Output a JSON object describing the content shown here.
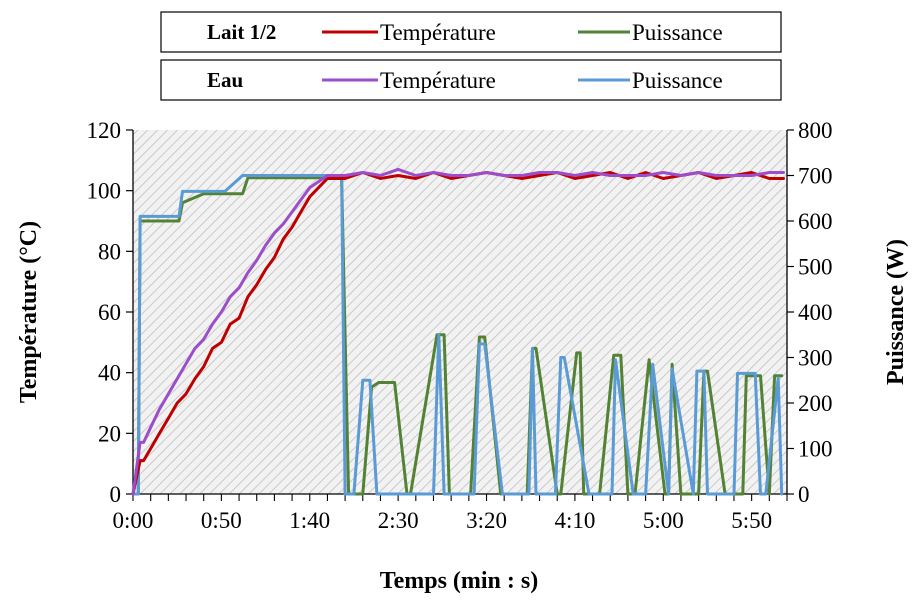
{
  "chart_data": {
    "type": "line",
    "x_label": "Temps (min : s)",
    "y_left_label": "Température (°C)",
    "y_right_label": "Puissance (W)",
    "x_range_s": [
      0,
      370
    ],
    "y_left_range": [
      0,
      120
    ],
    "y_right_range": [
      0,
      800
    ],
    "x_ticks": [
      "0:00",
      "0:50",
      "1:40",
      "2:30",
      "3:20",
      "4:10",
      "5:00",
      "5:50"
    ],
    "x_tick_values": [
      0,
      50,
      100,
      150,
      200,
      250,
      300,
      350
    ],
    "y_left_ticks": [
      0,
      20,
      40,
      60,
      80,
      100,
      120
    ],
    "y_right_ticks": [
      0,
      100,
      200,
      300,
      400,
      500,
      600,
      700,
      800
    ],
    "plot_background": "hatched light gray",
    "legend": {
      "placement": "top",
      "groups": [
        {
          "title": "Lait 1/2",
          "entries": [
            {
              "label": "Température",
              "color": "#c00000"
            },
            {
              "label": "Puissance",
              "color": "#548235"
            }
          ]
        },
        {
          "title": "Eau",
          "entries": [
            {
              "label": "Température",
              "color": "#9b4dca"
            },
            {
              "label": "Puissance",
              "color": "#5b9bd5"
            }
          ]
        }
      ]
    },
    "series": [
      {
        "name": "Lait 1/2 Température",
        "axis": "left",
        "color": "#c00000",
        "x": [
          0,
          4,
          6,
          10,
          15,
          20,
          25,
          30,
          35,
          40,
          45,
          50,
          55,
          60,
          65,
          70,
          75,
          80,
          85,
          90,
          95,
          100,
          105,
          110,
          115,
          120,
          130,
          140,
          150,
          160,
          170,
          180,
          190,
          200,
          210,
          220,
          230,
          240,
          250,
          260,
          270,
          280,
          290,
          300,
          310,
          320,
          330,
          340,
          350,
          360,
          368
        ],
        "y": [
          0,
          11,
          11,
          15,
          20,
          25,
          30,
          33,
          38,
          42,
          48,
          50,
          56,
          58,
          65,
          69,
          74,
          78,
          84,
          88,
          93,
          98,
          101,
          104,
          104,
          104,
          106,
          104,
          105,
          104,
          106,
          104,
          105,
          106,
          105,
          104,
          105,
          106,
          104,
          105,
          106,
          104,
          106,
          104,
          105,
          106,
          104,
          105,
          106,
          104,
          104
        ]
      },
      {
        "name": "Eau Température",
        "axis": "left",
        "color": "#9b4dca",
        "x": [
          0,
          4,
          6,
          10,
          15,
          20,
          25,
          30,
          35,
          40,
          45,
          50,
          55,
          60,
          65,
          70,
          75,
          80,
          85,
          90,
          95,
          100,
          105,
          110,
          115,
          120,
          130,
          140,
          150,
          160,
          170,
          180,
          190,
          200,
          210,
          220,
          230,
          240,
          250,
          260,
          270,
          280,
          290,
          300,
          310,
          320,
          330,
          340,
          350,
          360,
          368
        ],
        "y": [
          0,
          17,
          17,
          22,
          28,
          33,
          38,
          43,
          48,
          51,
          56,
          60,
          65,
          68,
          73,
          77,
          82,
          86,
          89,
          93,
          97,
          101,
          103,
          105,
          105,
          105,
          106,
          105,
          107,
          105,
          106,
          105,
          105,
          106,
          105,
          105,
          106,
          106,
          105,
          106,
          105,
          105,
          105,
          106,
          105,
          106,
          105,
          105,
          105,
          106,
          106
        ]
      },
      {
        "name": "Lait 1/2 Puissance",
        "axis": "right",
        "color": "#548235",
        "x": [
          0,
          3,
          4,
          21,
          26,
          28,
          40,
          46,
          52,
          62,
          65,
          86,
          97,
          109,
          115,
          118,
          122,
          130,
          135,
          139,
          141,
          148,
          155,
          157,
          172,
          176,
          179,
          191,
          196,
          199,
          208,
          223,
          226,
          228,
          240,
          242,
          251,
          253,
          255,
          264,
          272,
          274,
          276,
          280,
          284,
          292,
          301,
          303,
          305,
          310,
          320,
          323,
          325,
          335,
          345,
          347,
          349,
          355,
          360,
          363,
          367
        ],
        "y": [
          0,
          0,
          600,
          600,
          600,
          640,
          660,
          660,
          660,
          660,
          695,
          695,
          695,
          695,
          695,
          695,
          0,
          0,
          235,
          245,
          245,
          245,
          0,
          0,
          350,
          350,
          0,
          0,
          345,
          345,
          0,
          0,
          320,
          320,
          0,
          0,
          310,
          310,
          0,
          0,
          305,
          305,
          305,
          0,
          0,
          295,
          0,
          0,
          285,
          0,
          0,
          270,
          270,
          0,
          0,
          260,
          260,
          260,
          0,
          260,
          260
        ]
      },
      {
        "name": "Eau Puissance",
        "axis": "right",
        "color": "#5b9bd5",
        "x": [
          0,
          3,
          4,
          21,
          26,
          28,
          40,
          46,
          52,
          62,
          65,
          86,
          97,
          109,
          115,
          118,
          120,
          125,
          130,
          134,
          138,
          143,
          155,
          157,
          170,
          173,
          176,
          186,
          193,
          196,
          199,
          209,
          211,
          224,
          226,
          228,
          239,
          242,
          244,
          258,
          260,
          271,
          273,
          283,
          285,
          290,
          294,
          303,
          305,
          317,
          319,
          323,
          325,
          336,
          340,
          342,
          352,
          355,
          358,
          365,
          367
        ],
        "y": [
          0,
          0,
          610,
          610,
          610,
          665,
          665,
          665,
          665,
          700,
          700,
          700,
          700,
          700,
          700,
          700,
          0,
          0,
          250,
          250,
          0,
          0,
          0,
          0,
          0,
          350,
          0,
          0,
          0,
          330,
          330,
          0,
          0,
          0,
          320,
          0,
          0,
          300,
          300,
          0,
          0,
          0,
          295,
          0,
          0,
          0,
          285,
          0,
          275,
          0,
          270,
          270,
          0,
          0,
          0,
          265,
          265,
          0,
          0,
          255,
          0
        ]
      }
    ]
  }
}
